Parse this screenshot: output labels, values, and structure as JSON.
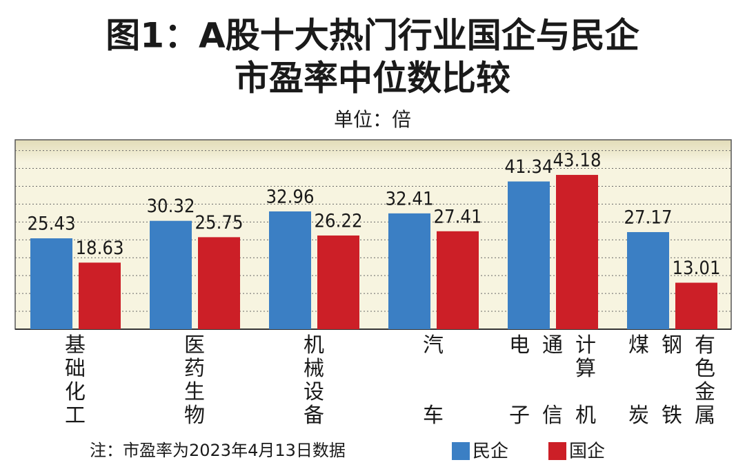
{
  "chart_data": {
    "type": "bar",
    "title": [
      "图1：A股十大热门行业国企与民企",
      "市盈率中位数比较"
    ],
    "subtitle": "单位：倍",
    "note": "注：市盈率为2023年4月13日数据",
    "categories": [
      [
        "基础化工"
      ],
      [
        "医药生物"
      ],
      [
        "机械设备"
      ],
      [
        "汽车"
      ],
      [
        "电子",
        "通信",
        "计算机"
      ],
      [
        "煤炭",
        "钢铁",
        "有色金属"
      ]
    ],
    "series": [
      {
        "name": "民企",
        "color": "#3b7fc4",
        "values": [
          25.43,
          30.32,
          32.96,
          32.41,
          41.34,
          27.17
        ]
      },
      {
        "name": "国企",
        "color": "#cc1f27",
        "values": [
          18.63,
          25.75,
          26.22,
          27.41,
          43.18,
          13.01
        ]
      }
    ],
    "ylim": [
      0,
      53
    ],
    "yticks": [
      0,
      5,
      10,
      15,
      20,
      25,
      30,
      35,
      40,
      45,
      50
    ],
    "grid": true
  }
}
